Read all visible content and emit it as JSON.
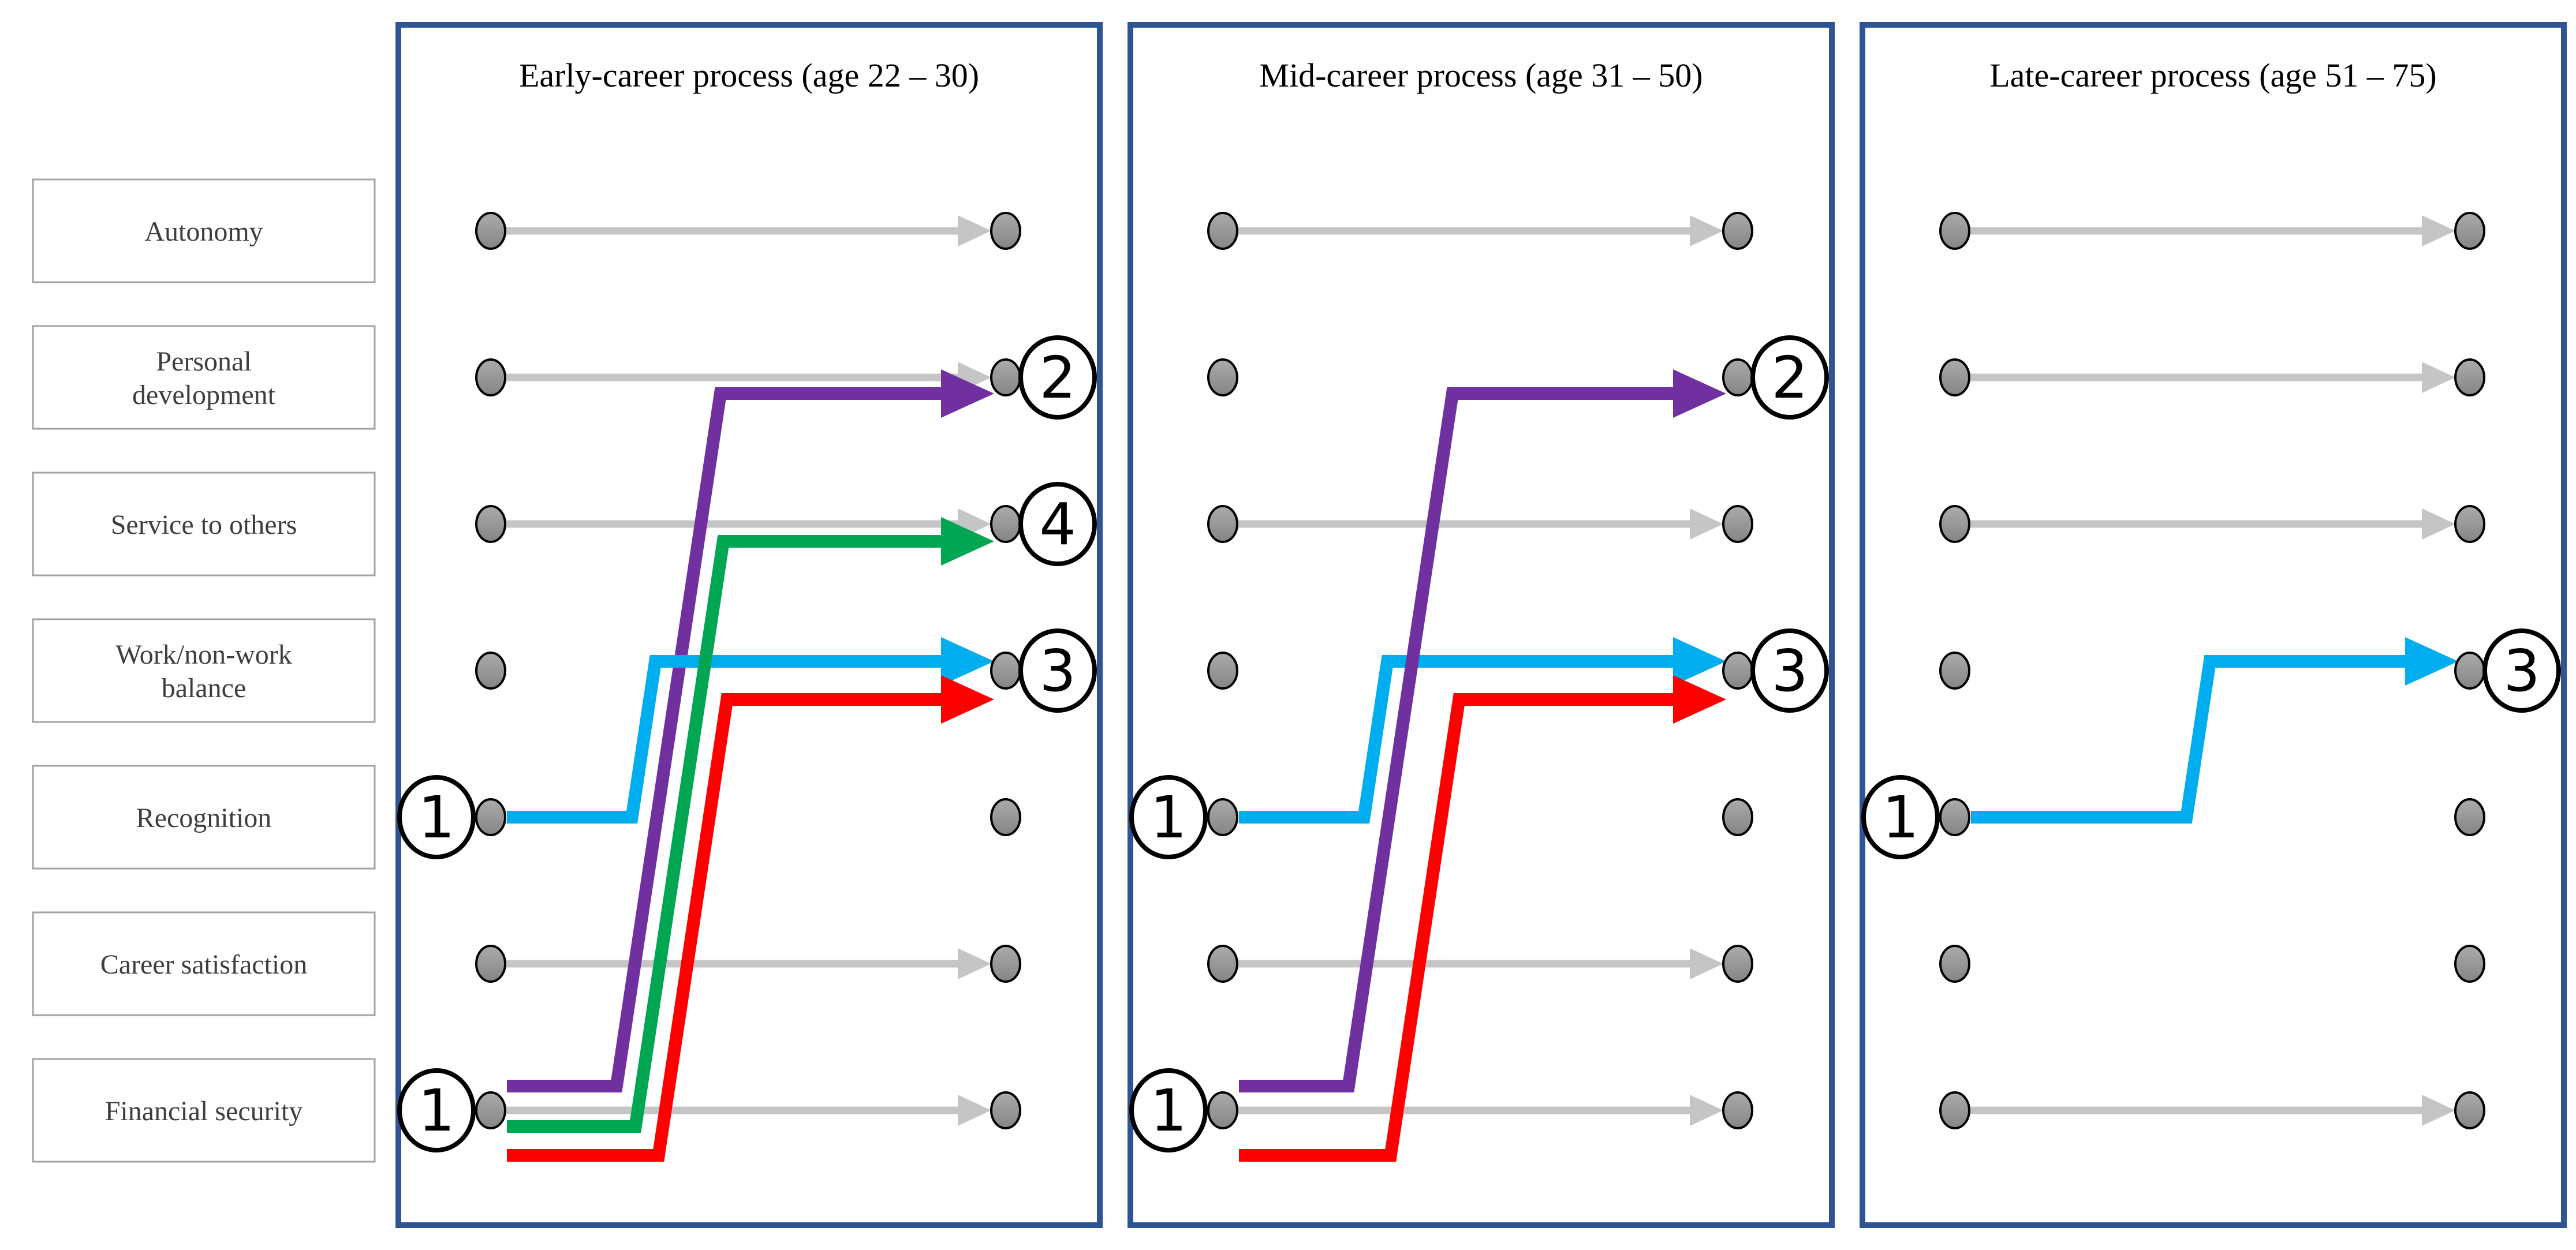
{
  "figure": {
    "type": "career-values-transition-diagram",
    "description": "Ranked career values shifting across three career stages"
  },
  "colors": {
    "background": "#ffffff",
    "panel_border": "#2f5496",
    "box_border": "#a3a3a3",
    "label_text": "#3d3d3d",
    "title_text": "#000000",
    "dot_fill_top": "#aaaaaa",
    "dot_fill_bottom": "#868686",
    "dot_stroke": "#000000",
    "gray_arrow": "#c5c5c5",
    "badge_fill": "#ffffff",
    "badge_stroke": "#000000",
    "purple": "#7030a0",
    "green": "#00a651",
    "red": "#fe0000",
    "blue": "#00aeef"
  },
  "factors": [
    {
      "label": "Autonomy",
      "lines": [
        "Autonomy"
      ]
    },
    {
      "label": "Personal development",
      "lines": [
        "Personal",
        "development"
      ]
    },
    {
      "label": "Service to others",
      "lines": [
        "Service to others"
      ]
    },
    {
      "label": "Work/non-work balance",
      "lines": [
        "Work/non-work",
        "balance"
      ]
    },
    {
      "label": "Recognition",
      "lines": [
        "Recognition"
      ]
    },
    {
      "label": "Career satisfaction",
      "lines": [
        "Career satisfaction"
      ]
    },
    {
      "label": "Financial security",
      "lines": [
        "Financial security"
      ]
    }
  ],
  "panels": [
    {
      "title": "Early-career process (age 22 – 30)",
      "gray_arrow_rows": [
        0,
        1,
        2,
        5,
        6
      ],
      "transitions": [
        {
          "color": "purple",
          "from": "Financial security",
          "from_row": 6,
          "to": "Personal development",
          "to_row": 1,
          "end_label": "2",
          "bend": 0.311
        },
        {
          "color": "blue",
          "from": "Recognition",
          "from_row": 4,
          "to": "Work/non-work balance",
          "to_row": 3,
          "end_label": "3",
          "bend": 0.333
        },
        {
          "color": "green",
          "from": "Financial security",
          "from_row": 6,
          "to": "Service to others",
          "to_row": 2,
          "end_label": "4",
          "bend": 0.338
        },
        {
          "color": "red",
          "from": "Financial security",
          "from_row": 6,
          "to": "Work/non-work balance",
          "to_row": 3,
          "end_label": "3",
          "bend": 0.371
        }
      ],
      "start_badges": [
        {
          "row": 4,
          "label": "1"
        },
        {
          "row": 6,
          "label": "1"
        }
      ],
      "end_badges": [
        {
          "row": 1,
          "label": "2"
        },
        {
          "row": 2,
          "label": "4"
        },
        {
          "row": 3,
          "label": "3"
        }
      ]
    },
    {
      "title": "Mid-career process (age 31 – 50)",
      "gray_arrow_rows": [
        0,
        2,
        5,
        6
      ],
      "transitions": [
        {
          "color": "blue",
          "from": "Recognition",
          "from_row": 4,
          "to": "Work/non-work balance",
          "to_row": 3,
          "end_label": "3",
          "bend": 0.333
        },
        {
          "color": "purple",
          "from": "Financial security",
          "from_row": 6,
          "to": "Personal development",
          "to_row": 1,
          "end_label": "2",
          "bend": 0.311
        },
        {
          "color": "red",
          "from": "Financial security",
          "from_row": 6,
          "to": "Work/non-work balance",
          "to_row": 3,
          "end_label": "3",
          "bend": 0.371
        }
      ],
      "start_badges": [
        {
          "row": 4,
          "label": "1"
        },
        {
          "row": 6,
          "label": "1"
        }
      ],
      "end_badges": [
        {
          "row": 1,
          "label": "2"
        },
        {
          "row": 3,
          "label": "3"
        }
      ]
    },
    {
      "title": "Late-career process (age 51 – 75)",
      "gray_arrow_rows": [
        0,
        1,
        2,
        6
      ],
      "transitions": [
        {
          "color": "blue",
          "from": "Recognition",
          "from_row": 4,
          "to": "Work/non-work balance",
          "to_row": 3,
          "end_label": "3",
          "bend": 0.462
        }
      ],
      "start_badges": [
        {
          "row": 4,
          "label": "1"
        }
      ],
      "end_badges": [
        {
          "row": 3,
          "label": "3"
        }
      ]
    }
  ]
}
